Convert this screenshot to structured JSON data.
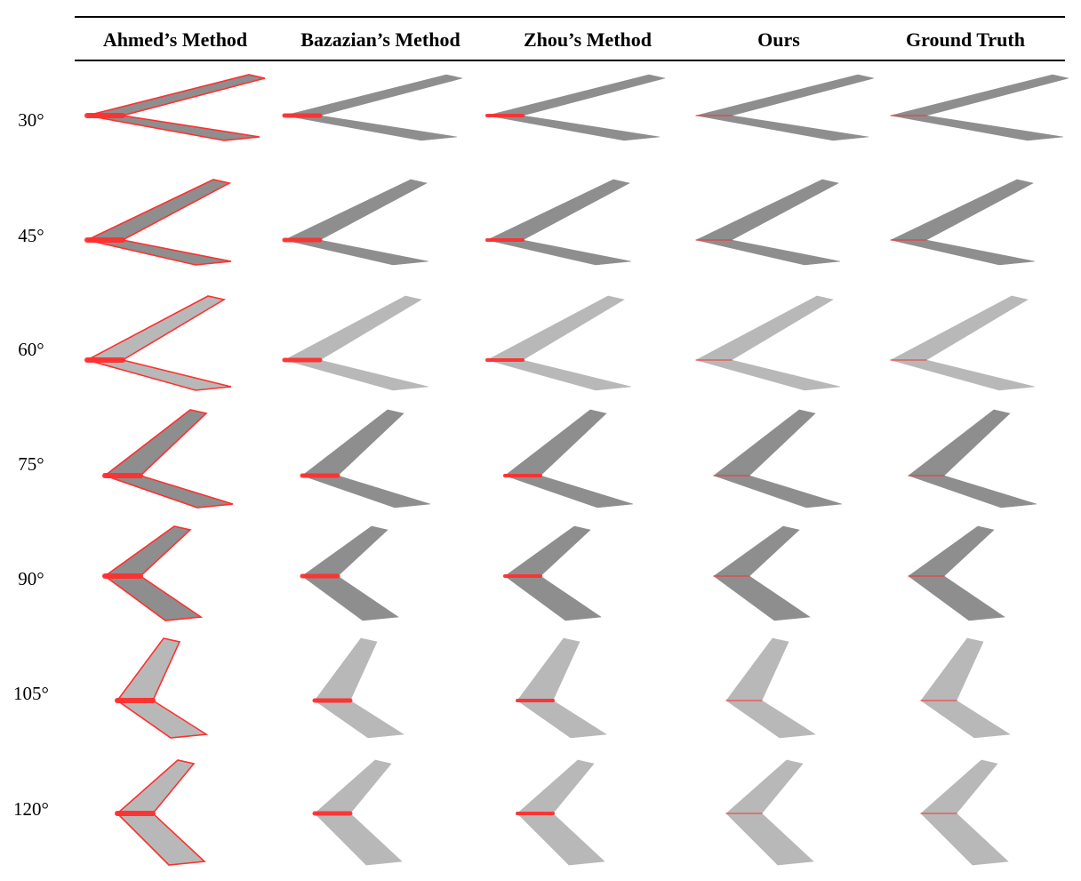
{
  "figure": {
    "columns": [
      "Ahmed’s Method",
      "Bazazian’s Method",
      "Zhou’s Method",
      "Ours",
      "Ground Truth"
    ],
    "rows": [
      "30°",
      "45°",
      "60°",
      "75°",
      "90°",
      "105°",
      "120°"
    ]
  },
  "colors": {
    "surface_dark": "#8e8e8e",
    "surface_light": "#b8b8b8",
    "edge_red": "#ff3030",
    "rule": "#000000"
  }
}
